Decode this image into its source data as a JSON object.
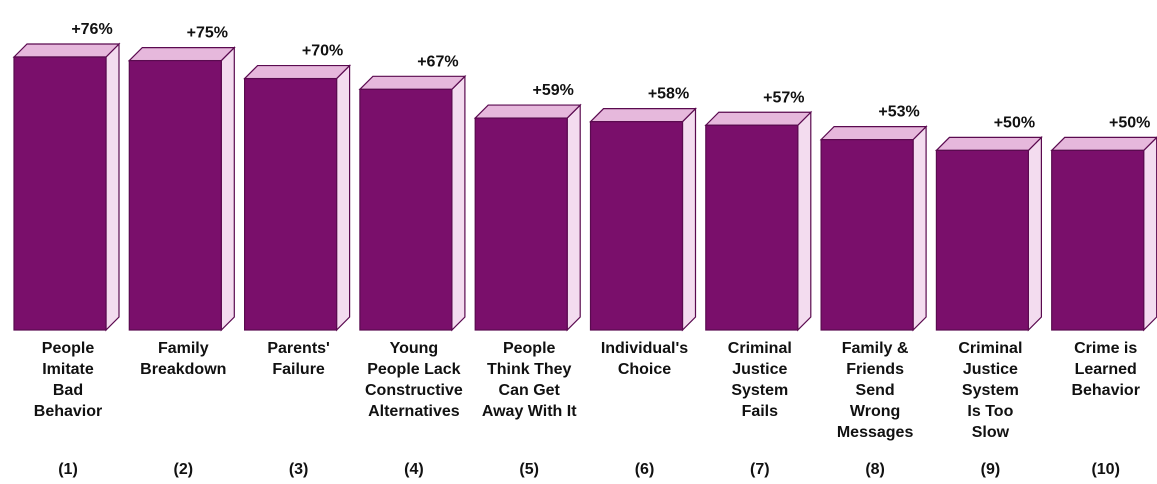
{
  "chart_data": {
    "type": "bar",
    "title": "",
    "xlabel": "",
    "ylabel": "",
    "ylim": [
      0,
      80
    ],
    "grid": false,
    "legend": "none",
    "bar_color": "#7a0f6b",
    "bar_top_color": "#e6b8dc",
    "bar_side_color": "#f3dcef",
    "outline_color": "#5a0a4f",
    "categories": [
      "People\nImitate\nBad\nBehavior",
      "Family\nBreakdown",
      "Parents'\nFailure",
      "Young\nPeople Lack\nConstructive\nAlternatives",
      "People\nThink They\nCan Get\nAway With It",
      "Individual's\nChoice",
      "Criminal\nJustice\nSystem\nFails",
      "Family &\nFriends\nSend\nWrong\nMessages",
      "Criminal\nJustice\nSystem\nIs Too\nSlow",
      "Crime is\nLearned\nBehavior"
    ],
    "indices": [
      "(1)",
      "(2)",
      "(3)",
      "(4)",
      "(5)",
      "(6)",
      "(7)",
      "(8)",
      "(9)",
      "(10)"
    ],
    "value_labels": [
      "+76%",
      "+75%",
      "+70%",
      "+67%",
      "+59%",
      "+58%",
      "+57%",
      "+53%",
      "+50%",
      "+50%"
    ],
    "values": [
      76,
      75,
      70,
      67,
      59,
      58,
      57,
      53,
      50,
      50
    ]
  }
}
